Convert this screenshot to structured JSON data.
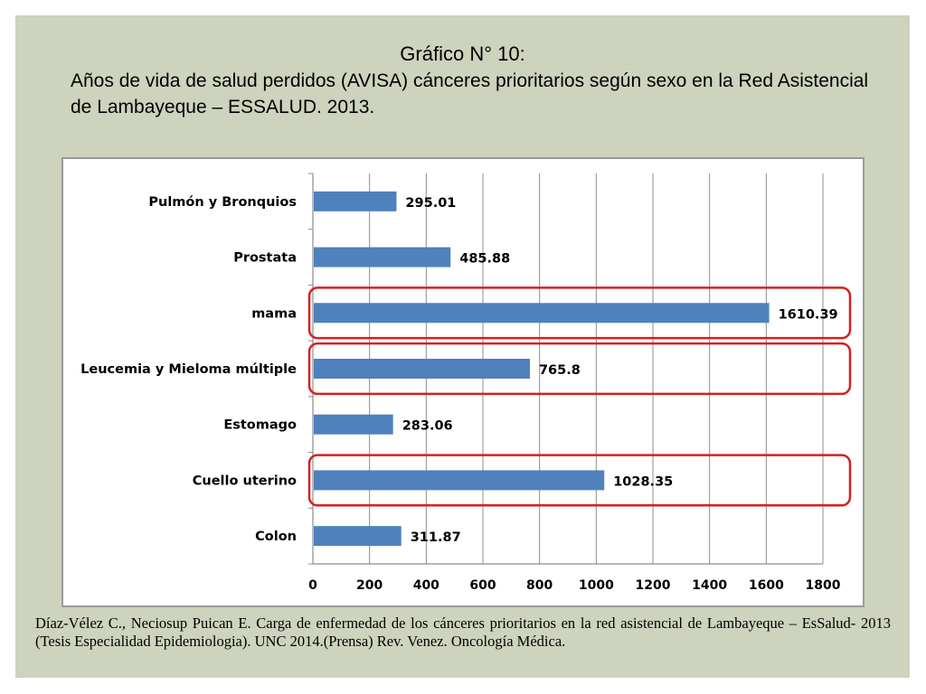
{
  "slide": {
    "title": "Gráfico N° 10:",
    "subtitle": "Años de vida de salud perdidos (AVISA) cánceres prioritarios según sexo en la Red Asistencial de Lambayeque – ESSALUD. 2013.",
    "citation": "Díaz-Vélez C., Neciosup Puican E. Carga de enfermedad de los cánceres prioritarios en la red asistencial de Lambayeque – EsSalud- 2013 (Tesis Especialidad Epidemiologia). UNC 2014.(Prensa) Rev. Venez. Oncología Médica."
  },
  "chart_data": {
    "type": "bar",
    "orientation": "horizontal",
    "title": "",
    "xlabel": "",
    "ylabel": "",
    "categories": [
      "Pulmón y Bronquios",
      "Prostata",
      "mama",
      "Leucemia y Mieloma múltiple",
      "Estomago",
      "Cuello uterino",
      "Colon"
    ],
    "values": [
      295.01,
      485.88,
      1610.39,
      765.8,
      283.06,
      1028.35,
      311.87
    ],
    "value_labels": [
      "295.01",
      "485.88",
      "1610.39",
      "765.8",
      "283.06",
      "1028.35",
      "311.87"
    ],
    "xlim": [
      0,
      1800
    ],
    "x_ticks": [
      "0",
      "200",
      "400",
      "600",
      "800",
      "1000",
      "1200",
      "1400",
      "1600",
      "1800"
    ],
    "grid": "vertical",
    "highlighted_categories": [
      "mama",
      "Leucemia y Mieloma múltiple",
      "Cuello uterino"
    ],
    "colors": {
      "bar": "#4f81bd",
      "highlight": "#d42020",
      "grid": "#8c8c8c"
    }
  }
}
